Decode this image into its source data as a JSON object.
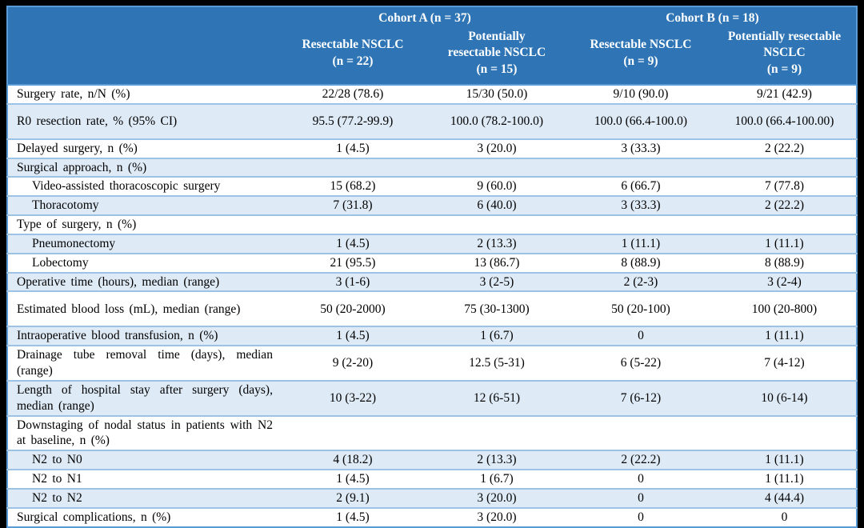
{
  "colors": {
    "outer_frame": "#000000",
    "header_bg": "#2F75B5",
    "header_text": "#FFFFFF",
    "stripe_bg": "#DEEAF6",
    "row_separator": "#9CC2E5",
    "table_border": "#5B9BD5",
    "body_text": "#000000"
  },
  "table": {
    "header": {
      "groups": [
        {
          "label": "Cohort A (n = 37)"
        },
        {
          "label": "Cohort B (n = 18)"
        }
      ],
      "columns": [
        {
          "lines": [
            "Resectable NSCLC",
            "(n = 22)"
          ]
        },
        {
          "lines": [
            "Potentially",
            "resectable NSCLC",
            "(n = 15)"
          ]
        },
        {
          "lines": [
            "Resectable NSCLC",
            "(n = 9)"
          ]
        },
        {
          "lines": [
            "Potentially resectable",
            "NSCLC",
            "(n = 9)"
          ]
        }
      ]
    },
    "rows": [
      {
        "label": "Surgery rate, n/N (%)",
        "indent": false,
        "tall": false,
        "values": [
          "22/28 (78.6)",
          "15/30 (50.0)",
          "9/10 (90.0)",
          "9/21 (42.9)"
        ]
      },
      {
        "label": "R0 resection rate, % (95% CI)",
        "indent": false,
        "tall": true,
        "values": [
          "95.5 (77.2-99.9)",
          "100.0 (78.2-100.0)",
          "100.0 (66.4-100.0)",
          "100.0 (66.4-100.00)"
        ]
      },
      {
        "label": "Delayed surgery, n (%)",
        "indent": false,
        "tall": false,
        "values": [
          "1 (4.5)",
          "3 (20.0)",
          "3 (33.3)",
          "2 (22.2)"
        ]
      },
      {
        "label": "Surgical approach, n (%)",
        "indent": false,
        "tall": false,
        "values": [
          "",
          "",
          "",
          ""
        ]
      },
      {
        "label": "Video-assisted thoracoscopic surgery",
        "indent": true,
        "tall": false,
        "values": [
          "15 (68.2)",
          "9 (60.0)",
          "6 (66.7)",
          "7 (77.8)"
        ]
      },
      {
        "label": "Thoracotomy",
        "indent": true,
        "tall": false,
        "values": [
          "7 (31.8)",
          "6 (40.0)",
          "3 (33.3)",
          "2 (22.2)"
        ]
      },
      {
        "label": "Type of surgery, n (%)",
        "indent": false,
        "tall": false,
        "values": [
          "",
          "",
          "",
          ""
        ]
      },
      {
        "label": "Pneumonectomy",
        "indent": true,
        "tall": false,
        "values": [
          "1 (4.5)",
          "2 (13.3)",
          "1 (11.1)",
          "1 (11.1)"
        ]
      },
      {
        "label": "Lobectomy",
        "indent": true,
        "tall": false,
        "values": [
          "21 (95.5)",
          "13 (86.7)",
          "8 (88.9)",
          "8 (88.9)"
        ]
      },
      {
        "label": "Operative time (hours), median (range)",
        "indent": false,
        "tall": false,
        "values": [
          "3 (1-6)",
          "3 (2-5)",
          "2 (2-3)",
          "3 (2-4)"
        ]
      },
      {
        "label": "Estimated blood loss (mL), median (range)",
        "indent": false,
        "tall": true,
        "values": [
          "50 (20-2000)",
          "75 (30-1300)",
          "50 (20-100)",
          "100 (20-800)"
        ]
      },
      {
        "label": "Intraoperative blood transfusion, n (%)",
        "indent": false,
        "tall": false,
        "values": [
          "1 (4.5)",
          "1 (6.7)",
          "0",
          "1 (11.1)"
        ]
      },
      {
        "label": "Drainage tube removal time (days), median (range)",
        "indent": false,
        "tall": false,
        "values": [
          "9 (2-20)",
          "12.5 (5-31)",
          "6 (5-22)",
          "7 (4-12)"
        ]
      },
      {
        "label": "Length of hospital stay after surgery (days), median (range)",
        "indent": false,
        "tall": false,
        "values": [
          "10 (3-22)",
          "12 (6-51)",
          "7 (6-12)",
          "10 (6-14)"
        ]
      },
      {
        "label": "Downstaging of nodal status in patients with N2 at baseline, n (%)",
        "indent": false,
        "tall": false,
        "values": [
          "",
          "",
          "",
          ""
        ]
      },
      {
        "label": "N2 to N0",
        "indent": true,
        "tall": false,
        "values": [
          "4 (18.2)",
          "2 (13.3)",
          "2 (22.2)",
          "1 (11.1)"
        ]
      },
      {
        "label": "N2 to N1",
        "indent": true,
        "tall": false,
        "values": [
          "1 (4.5)",
          "1 (6.7)",
          "0",
          "1 (11.1)"
        ]
      },
      {
        "label": "N2 to N2",
        "indent": true,
        "tall": false,
        "values": [
          "2 (9.1)",
          "3 (20.0)",
          "0",
          "4 (44.4)"
        ]
      },
      {
        "label": "Surgical complications, n (%)",
        "indent": false,
        "tall": false,
        "values": [
          "1 (4.5)",
          "3 (20.0)",
          "0",
          "0"
        ]
      }
    ]
  }
}
